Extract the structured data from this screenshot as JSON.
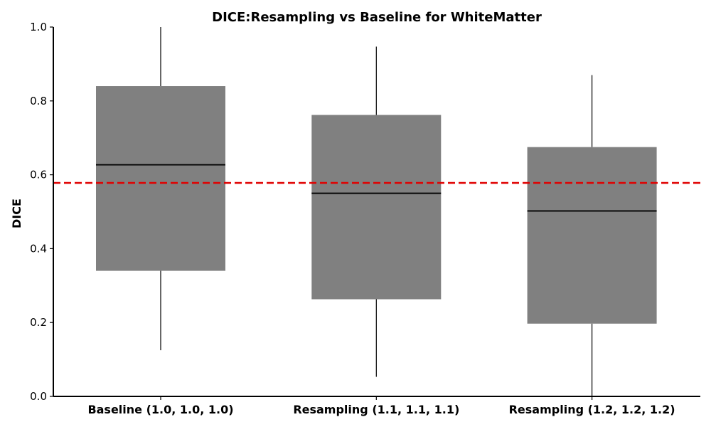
{
  "chart_data": {
    "type": "box",
    "title": "DICE:Resampling vs Baseline for WhiteMatter",
    "xlabel": "",
    "ylabel": "DICE",
    "ylim": [
      0.0,
      1.0
    ],
    "yticks": [
      "0.0",
      "0.2",
      "0.4",
      "0.6",
      "0.8",
      "1.0"
    ],
    "categories": [
      "Baseline (1.0, 1.0, 1.0)",
      "Resampling (1.1, 1.1, 1.1)",
      "Resampling (1.2, 1.2, 1.2)"
    ],
    "boxes": [
      {
        "whisker_low": 0.125,
        "q1": 0.34,
        "median": 0.627,
        "q3": 0.84,
        "whisker_high": 1.0
      },
      {
        "whisker_low": 0.053,
        "q1": 0.263,
        "median": 0.55,
        "q3": 0.762,
        "whisker_high": 0.947
      },
      {
        "whisker_low": 0.0,
        "q1": 0.197,
        "median": 0.502,
        "q3": 0.675,
        "whisker_high": 0.87
      }
    ],
    "reference_line": {
      "value": 0.578,
      "style": "dashed",
      "color": "#e00000"
    },
    "box_color": "#808080",
    "grid": false
  }
}
